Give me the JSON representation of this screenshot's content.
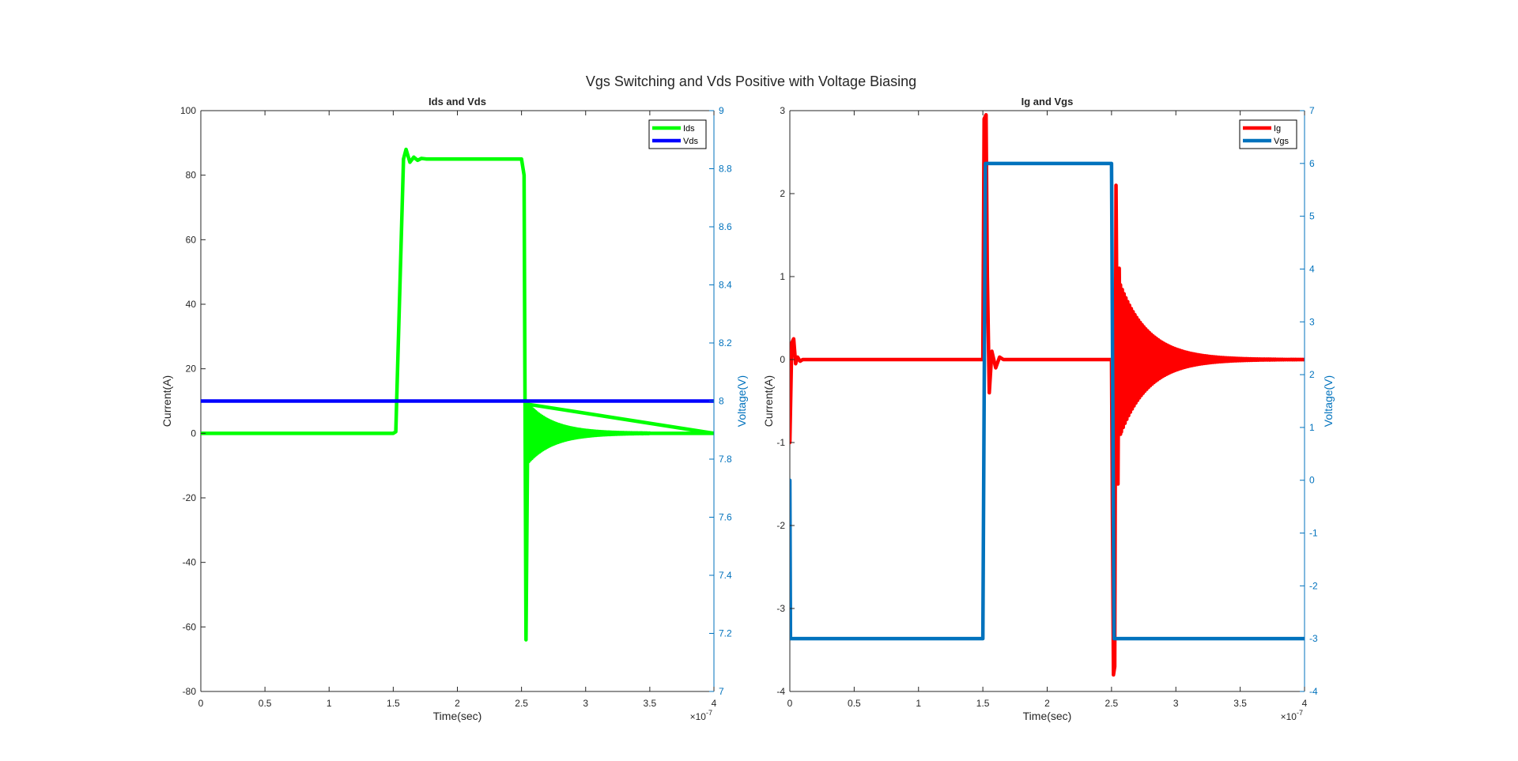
{
  "figure_title": "Vgs Switching and Vds Positive with Voltage Biasing",
  "chart_data": [
    {
      "type": "line",
      "title": "Ids and Vds",
      "xlabel": "Time(sec)",
      "x_multiplier": "10",
      "x_exponent": "-7",
      "xlim": [
        0,
        4
      ],
      "xticks": [
        "0",
        "0.5",
        "1",
        "1.5",
        "2",
        "2.5",
        "3",
        "3.5",
        "4"
      ],
      "ylabel_left": "Current(A)",
      "ylim_left": [
        -80,
        100
      ],
      "yticks_left": [
        "-80",
        "-60",
        "-40",
        "-20",
        "0",
        "20",
        "40",
        "60",
        "80",
        "100"
      ],
      "ylabel_right": "Voltage(V)",
      "ylim_right": [
        7,
        9
      ],
      "yticks_right": [
        "7",
        "7.2",
        "7.4",
        "7.6",
        "7.8",
        "8",
        "8.2",
        "8.4",
        "8.6",
        "8.8",
        "9"
      ],
      "right_axis_color": "#0072BD",
      "legend_position": "top-right",
      "series": [
        {
          "name": "Ids",
          "axis": "left",
          "color": "#00FF00",
          "points": [
            [
              0,
              0
            ],
            [
              1.5,
              0
            ],
            [
              1.52,
              0.5
            ],
            [
              1.58,
              85
            ],
            [
              1.6,
              88
            ],
            [
              1.63,
              84
            ],
            [
              1.66,
              85.6
            ],
            [
              1.69,
              84.6
            ],
            [
              1.72,
              85.2
            ],
            [
              1.76,
              85
            ],
            [
              2.5,
              85
            ],
            [
              2.52,
              80
            ],
            [
              2.535,
              -64
            ],
            [
              2.55,
              9.5
            ],
            [
              2.56,
              -8
            ],
            [
              2.8,
              0
            ],
            [
              4,
              0
            ]
          ],
          "ringing": {
            "start": 2.55,
            "end": 3.5,
            "amplitude": 9,
            "decay": 0.2,
            "period": 0.012
          }
        },
        {
          "name": "Vds",
          "axis": "right",
          "color": "#0000FF",
          "points": [
            [
              0,
              8
            ],
            [
              4,
              8
            ]
          ]
        }
      ]
    },
    {
      "type": "line",
      "title": "Ig and Vgs",
      "xlabel": "Time(sec)",
      "x_multiplier": "10",
      "x_exponent": "-7",
      "xlim": [
        0,
        4
      ],
      "xticks": [
        "0",
        "0.5",
        "1",
        "1.5",
        "2",
        "2.5",
        "3",
        "3.5",
        "4"
      ],
      "ylabel_left": "Current(A)",
      "ylim_left": [
        -4,
        3
      ],
      "yticks_left": [
        "-4",
        "-3",
        "-2",
        "-1",
        "0",
        "1",
        "2",
        "3"
      ],
      "ylabel_right": "Voltage(V)",
      "ylim_right": [
        -4,
        7
      ],
      "yticks_right": [
        "-4",
        "-3",
        "-2",
        "-1",
        "0",
        "1",
        "2",
        "3",
        "4",
        "5",
        "6",
        "7"
      ],
      "right_axis_color": "#0072BD",
      "legend_position": "top-right",
      "series": [
        {
          "name": "Ig",
          "axis": "left",
          "color": "#FF0000",
          "points": [
            [
              0,
              -1
            ],
            [
              0.015,
              0.2
            ],
            [
              0.03,
              0.25
            ],
            [
              0.045,
              -0.05
            ],
            [
              0.06,
              0.03
            ],
            [
              0.08,
              -0.02
            ],
            [
              0.1,
              0
            ],
            [
              1.5,
              0
            ],
            [
              1.51,
              2.9
            ],
            [
              1.525,
              2.95
            ],
            [
              1.535,
              1
            ],
            [
              1.55,
              -0.4
            ],
            [
              1.57,
              0.1
            ],
            [
              1.6,
              -0.1
            ],
            [
              1.63,
              0.03
            ],
            [
              1.66,
              0
            ],
            [
              2.5,
              0
            ],
            [
              2.515,
              -3.8
            ],
            [
              2.525,
              -3.7
            ],
            [
              2.535,
              2.1
            ],
            [
              2.55,
              -1.5
            ],
            [
              2.56,
              1.1
            ],
            [
              2.57,
              -0.9
            ]
          ],
          "ringing": {
            "start": 2.57,
            "end": 4,
            "amplitude": 0.9,
            "decay": 0.22,
            "period": 0.014
          }
        },
        {
          "name": "Vgs",
          "axis": "right",
          "color": "#0072BD",
          "points": [
            [
              0,
              0
            ],
            [
              0.005,
              -3
            ],
            [
              1.5,
              -3
            ],
            [
              1.52,
              6
            ],
            [
              2.5,
              6
            ],
            [
              2.52,
              -3
            ],
            [
              4,
              -3
            ]
          ]
        }
      ]
    }
  ]
}
